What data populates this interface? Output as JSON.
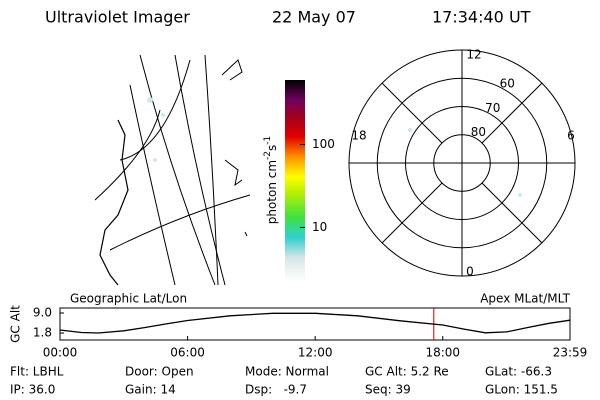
{
  "header": {
    "title": "Ultraviolet Imager",
    "date": "22 May 07",
    "time": "17:34:40 UT"
  },
  "colorbar": {
    "unit": {
      "base": "photon cm",
      "exp1": "-2",
      "mid": "s",
      "exp2": "-1"
    },
    "scale": "log",
    "lim": [
      2.2,
      600
    ],
    "ticks": [
      10,
      100
    ]
  },
  "polar": {
    "mlt_labels": {
      "top": "12",
      "left": "18",
      "right": "6",
      "bottom": "0"
    },
    "lat_rings": [
      80,
      70,
      60
    ],
    "lat_min": 50
  },
  "strip": {
    "left_label": "Geographic Lat/Lon",
    "right_label": "Apex MLat/MLT"
  },
  "chart_data": {
    "type": "line",
    "ylabel": "GC Alt",
    "x": [
      0,
      1,
      1.8,
      3,
      4,
      5,
      6,
      8,
      10,
      12,
      14,
      16,
      18,
      19,
      20,
      21,
      22,
      23,
      23.983
    ],
    "values": [
      2.9,
      2.0,
      1.8,
      2.6,
      3.8,
      5.1,
      6.3,
      8.0,
      8.9,
      8.9,
      8.0,
      6.2,
      4.7,
      3.2,
      1.9,
      2.2,
      3.8,
      5.3,
      6.4
    ],
    "xlim": [
      0,
      23.983
    ],
    "ylim": [
      -0.7,
      10.8
    ],
    "xticks": [
      {
        "value": 0,
        "label": "00:00"
      },
      {
        "value": 6,
        "label": "06:00"
      },
      {
        "value": 12,
        "label": "12:00"
      },
      {
        "value": 18,
        "label": "18:00"
      },
      {
        "value": 23.983,
        "label": "23:59"
      }
    ],
    "yticks": [
      1.8,
      {
        "value": 9,
        "label": "9.0"
      }
    ],
    "current_time": 17.578,
    "current_color": "#c00000",
    "color": "#000000"
  },
  "info": [
    [
      "Flt: LBHL",
      "Door: Open",
      "Mode: Normal",
      "GC Alt: 5.2 Re",
      "GLat: -66.3"
    ],
    [
      "IP: 36.0",
      "Gain: 14",
      "Dsp:   -9.7",
      "Seq: 39",
      "GLon: 151.5"
    ]
  ]
}
